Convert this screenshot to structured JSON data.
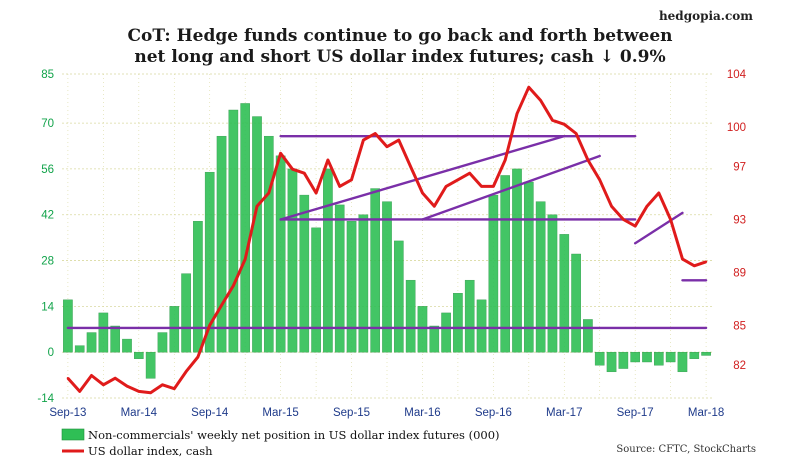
{
  "header": {
    "site": "hedgopia.com",
    "title_line1": "CoT: Hedge funds continue to go back and forth between",
    "title_line2": "net long and short US dollar index futures; cash ↓ 0.9%"
  },
  "source": "Source: CFTC, StockCharts",
  "colors": {
    "bars": "#2fbf55",
    "bars_edge": "#1f8f3b",
    "line": "#e01b1b",
    "trendlines": "#7a2fa8",
    "left_axis_text": "#11a34a",
    "right_axis_text": "#d11f1f",
    "x_axis_text": "#1e3a8a",
    "grid": "#d9d9a0"
  },
  "chart_data": {
    "type": "bar+line",
    "title": "CoT: Hedge funds continue to go back and forth between net long and short US dollar index futures; cash ↓ 0.9%",
    "grid": true,
    "x_ticks": [
      "Sep-13",
      "Mar-14",
      "Sep-14",
      "Mar-15",
      "Sep-15",
      "Mar-16",
      "Sep-16",
      "Mar-17",
      "Sep-17",
      "Mar-18"
    ],
    "left_axis": {
      "ticks": [
        "85",
        "70",
        "56",
        "42",
        "28",
        "14",
        "0",
        "-14"
      ],
      "ylim": [
        -14,
        85
      ]
    },
    "right_axis": {
      "ticks": [
        "104",
        "100",
        "97",
        "93",
        "89",
        "85",
        "82"
      ],
      "ylim": [
        79.5,
        104
      ]
    },
    "legend": [
      "Non-commercials' weekly net position in US dollar index futures (000)",
      "US dollar index, cash"
    ],
    "series_bars": {
      "name": "Non-commercials' weekly net position in US dollar index futures (000)",
      "x": [
        "Sep-13",
        "Oct-13",
        "Nov-13",
        "Dec-13",
        "Jan-14",
        "Feb-14",
        "Mar-14",
        "Apr-14",
        "May-14",
        "Jun-14",
        "Jul-14",
        "Aug-14",
        "Sep-14",
        "Oct-14",
        "Nov-14",
        "Dec-14",
        "Jan-15",
        "Feb-15",
        "Mar-15",
        "Apr-15",
        "May-15",
        "Jun-15",
        "Jul-15",
        "Aug-15",
        "Sep-15",
        "Oct-15",
        "Nov-15",
        "Dec-15",
        "Jan-16",
        "Feb-16",
        "Mar-16",
        "Apr-16",
        "May-16",
        "Jun-16",
        "Jul-16",
        "Aug-16",
        "Sep-16",
        "Oct-16",
        "Nov-16",
        "Dec-16",
        "Jan-17",
        "Feb-17",
        "Mar-17",
        "Apr-17",
        "May-17",
        "Jun-17",
        "Jul-17",
        "Aug-17",
        "Sep-17",
        "Oct-17",
        "Nov-17",
        "Dec-17",
        "Jan-18",
        "Feb-18",
        "Mar-18"
      ],
      "values": [
        16,
        2,
        6,
        12,
        8,
        4,
        -2,
        -8,
        6,
        14,
        24,
        40,
        55,
        66,
        74,
        76,
        72,
        66,
        60,
        56,
        48,
        38,
        56,
        45,
        40,
        42,
        50,
        46,
        34,
        22,
        14,
        8,
        12,
        18,
        22,
        16,
        48,
        54,
        56,
        52,
        46,
        42,
        36,
        30,
        10,
        -4,
        -6,
        -5,
        -3,
        -3,
        -4,
        -3,
        -6,
        -2,
        -1
      ]
    },
    "series_line": {
      "name": "US dollar index, cash",
      "x": [
        "Sep-13",
        "Oct-13",
        "Nov-13",
        "Dec-13",
        "Jan-14",
        "Feb-14",
        "Mar-14",
        "Apr-14",
        "May-14",
        "Jun-14",
        "Jul-14",
        "Aug-14",
        "Sep-14",
        "Oct-14",
        "Nov-14",
        "Dec-14",
        "Jan-15",
        "Feb-15",
        "Mar-15",
        "Apr-15",
        "May-15",
        "Jun-15",
        "Jul-15",
        "Aug-15",
        "Sep-15",
        "Oct-15",
        "Nov-15",
        "Dec-15",
        "Jan-16",
        "Feb-16",
        "Mar-16",
        "Apr-16",
        "May-16",
        "Jun-16",
        "Jul-16",
        "Aug-16",
        "Sep-16",
        "Oct-16",
        "Nov-16",
        "Dec-16",
        "Jan-17",
        "Feb-17",
        "Mar-17",
        "Apr-17",
        "May-17",
        "Jun-17",
        "Jul-17",
        "Aug-17",
        "Sep-17",
        "Oct-17",
        "Nov-17",
        "Dec-17",
        "Jan-18",
        "Feb-18",
        "Mar-18"
      ],
      "values": [
        81.0,
        80.0,
        81.2,
        80.5,
        81.0,
        80.4,
        80.0,
        79.9,
        80.5,
        80.2,
        81.5,
        82.6,
        85.0,
        86.5,
        88.0,
        90.0,
        94.0,
        95.0,
        98.0,
        96.8,
        96.5,
        95.0,
        97.5,
        95.5,
        96.0,
        99.0,
        99.5,
        98.5,
        99.0,
        97.0,
        95.0,
        94.0,
        95.5,
        96.0,
        96.5,
        95.5,
        95.5,
        97.5,
        101.0,
        103.0,
        102.0,
        100.5,
        100.2,
        99.5,
        97.5,
        96.0,
        94.0,
        93.0,
        92.5,
        94.0,
        95.0,
        93.0,
        90.0,
        89.5,
        89.8
      ]
    },
    "trendlines": [
      {
        "from": [
          "Mar-15",
          99.3
        ],
        "to": [
          "Sep-17",
          99.3
        ]
      },
      {
        "from": [
          "Mar-15",
          93.0
        ],
        "to": [
          "Sep-17",
          93.0
        ]
      },
      {
        "from": [
          "Mar-15",
          93.0
        ],
        "to": [
          "Mar-17",
          99.3
        ]
      },
      {
        "from": [
          "Mar-16",
          93.0
        ],
        "to": [
          "Jun-17",
          97.8
        ]
      },
      {
        "from": [
          "Sep-17",
          91.2
        ],
        "to": [
          "Jan-18",
          93.5
        ]
      },
      {
        "from": [
          "Jan-18",
          88.4
        ],
        "to": [
          "Mar-18",
          88.4
        ]
      },
      {
        "from": [
          "Sep-13",
          84.8
        ],
        "to": [
          "Mar-18",
          84.8
        ]
      }
    ]
  }
}
